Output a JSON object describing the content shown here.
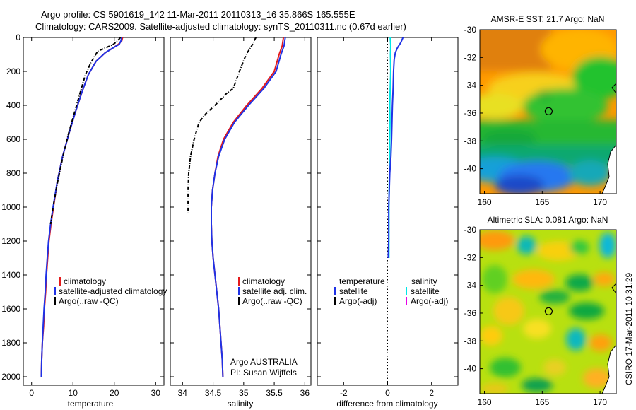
{
  "header": {
    "line1": "Argo profile: CS 5901619_142 11-Mar-2011 20110313_16 35.866S 165.555E",
    "line2": "Climatology: CARS2009. Satellite-adjusted climatology: synTS_20110311.nc (0.67d earlier)"
  },
  "credit": "CSIRO 17-Mar-2011 10:31:29",
  "colors": {
    "climatology": "#e41a1c",
    "satellite": "#1f32e6",
    "argo": "#000000",
    "sal_satellite": "#00e6e6",
    "sal_argo": "#e600e6",
    "marker": "#000000"
  },
  "chart_data": [
    {
      "id": "temperature",
      "type": "line",
      "xlabel": "temperature",
      "ylabel": "",
      "xlim": [
        -2,
        32
      ],
      "ylim": [
        2050,
        0
      ],
      "xticks": [
        "0",
        "10",
        "20",
        "30"
      ],
      "xtick_values": [
        0,
        10,
        20,
        30
      ],
      "yticks": [
        "0",
        "200",
        "400",
        "600",
        "800",
        "1000",
        "1200",
        "1400",
        "1600",
        "1800",
        "2000"
      ],
      "ytick_values": [
        0,
        200,
        400,
        600,
        800,
        1000,
        1200,
        1400,
        1600,
        1800,
        2000
      ],
      "legend": [
        "climatology",
        "satellite-adjusted climatology",
        "Argo(..raw -QC)"
      ],
      "series": [
        {
          "name": "climatology",
          "color_key": "climatology",
          "x": [
            22.0,
            21.8,
            21.0,
            19.8,
            17.8,
            15.6,
            13.7,
            12.2,
            10.6,
            9.1,
            7.5,
            6.2,
            5.3,
            4.7,
            4.2,
            3.9,
            3.6,
            3.4,
            3.1,
            2.9,
            2.6,
            2.45,
            2.35
          ],
          "y": [
            0,
            20,
            40,
            60,
            90,
            140,
            220,
            320,
            440,
            560,
            700,
            850,
            1000,
            1100,
            1200,
            1300,
            1400,
            1500,
            1600,
            1700,
            1800,
            1900,
            2000
          ]
        },
        {
          "name": "satellite-adjusted climatology",
          "color_key": "satellite",
          "x": [
            21.8,
            21.6,
            21.2,
            19.8,
            17.8,
            15.6,
            13.7,
            12.2,
            10.6,
            9.1,
            7.5,
            6.2,
            5.2,
            4.6,
            4.1,
            3.8,
            3.5,
            3.3,
            3.0,
            2.8,
            2.6,
            2.45,
            2.35
          ],
          "y": [
            0,
            20,
            40,
            60,
            90,
            140,
            220,
            320,
            440,
            560,
            700,
            850,
            1000,
            1100,
            1200,
            1300,
            1400,
            1500,
            1600,
            1700,
            1800,
            1900,
            2000
          ]
        },
        {
          "name": "Argo(..raw -QC)",
          "color_key": "argo",
          "x": [
            21.5,
            20.8,
            19.8,
            18.0,
            16.0,
            14.3,
            13.0,
            11.8,
            10.4,
            9.0,
            7.6,
            6.3,
            5.2,
            4.6
          ],
          "y": [
            0,
            20,
            40,
            60,
            80,
            150,
            220,
            320,
            440,
            560,
            700,
            850,
            1000,
            1100
          ]
        }
      ]
    },
    {
      "id": "salinity",
      "type": "line",
      "xlabel": "salinity",
      "ylabel": "",
      "xlim": [
        33.8,
        36.1
      ],
      "ylim": [
        2050,
        0
      ],
      "xticks": [
        "34",
        "34.5",
        "35",
        "35.5",
        "36"
      ],
      "xtick_values": [
        34,
        34.5,
        35,
        35.5,
        36
      ],
      "yticks": [],
      "legend": [
        "climatology",
        "satellite adj. clim.",
        "Argo(..raw -QC)"
      ],
      "annotation": [
        "Argo AUSTRALIA",
        "PI: Susan Wijffels"
      ],
      "series": [
        {
          "name": "climatology",
          "color_key": "climatology",
          "x": [
            35.65,
            35.63,
            35.58,
            35.5,
            35.3,
            35.05,
            34.83,
            34.67,
            34.58,
            34.53,
            34.49,
            34.47,
            34.47,
            34.48,
            34.5,
            34.53,
            34.56,
            34.59,
            34.61,
            34.63,
            34.65,
            34.66
          ],
          "y": [
            0,
            50,
            100,
            200,
            300,
            400,
            500,
            600,
            700,
            800,
            900,
            1000,
            1100,
            1200,
            1300,
            1400,
            1500,
            1600,
            1700,
            1800,
            1900,
            2000
          ]
        },
        {
          "name": "satellite adj. clim.",
          "color_key": "satellite",
          "x": [
            35.68,
            35.66,
            35.61,
            35.53,
            35.33,
            35.08,
            34.85,
            34.69,
            34.59,
            34.53,
            34.49,
            34.47,
            34.47,
            34.48,
            34.5,
            34.53,
            34.56,
            34.59,
            34.61,
            34.63,
            34.65,
            34.66
          ],
          "y": [
            0,
            50,
            100,
            200,
            300,
            400,
            500,
            600,
            700,
            800,
            900,
            1000,
            1100,
            1200,
            1300,
            1400,
            1500,
            1600,
            1700,
            1800,
            1900,
            2000
          ]
        },
        {
          "name": "Argo(..raw -QC)",
          "color_key": "argo",
          "x": [
            35.2,
            35.13,
            35.04,
            34.93,
            34.83,
            34.72,
            34.53,
            34.38,
            34.27,
            34.19,
            34.13,
            34.1,
            34.09,
            34.09
          ],
          "y": [
            0,
            50,
            100,
            200,
            300,
            330,
            400,
            450,
            500,
            600,
            700,
            800,
            900,
            1040
          ]
        }
      ]
    },
    {
      "id": "difference",
      "type": "line",
      "xlabel": "difference from climatology",
      "ylabel": "",
      "xlim": [
        -3.2,
        3.2
      ],
      "ylim": [
        2050,
        0
      ],
      "xticks": [
        "-2",
        "0",
        "2"
      ],
      "xtick_values": [
        -2,
        0,
        2
      ],
      "yticks": [],
      "legend_headers": [
        "temperature",
        "salinity"
      ],
      "legend": [
        "satellite",
        "Argo(-adj)",
        "satellite",
        "Argo(-adj)"
      ],
      "series": [
        {
          "name": "satellite",
          "color_key": "sal_satellite",
          "x": [
            0.12,
            0.14,
            0.13,
            0.14,
            0.12,
            0.1,
            0.11,
            0.1,
            0.09,
            0.08,
            0.07,
            0.06,
            0.06
          ],
          "y": [
            0,
            50,
            100,
            200,
            300,
            400,
            500,
            600,
            700,
            800,
            900,
            1000,
            1300
          ]
        },
        {
          "name": "satellite",
          "color_key": "satellite",
          "x": [
            0.7,
            0.6,
            0.45,
            0.35,
            0.3,
            0.27,
            0.25,
            0.22,
            0.2,
            0.18,
            0.15,
            0.1,
            0.05,
            0.05,
            0.03
          ],
          "y": [
            0,
            30,
            60,
            90,
            130,
            200,
            300,
            400,
            500,
            600,
            700,
            800,
            1000,
            1200,
            1300
          ]
        }
      ]
    },
    {
      "id": "sst-map",
      "type": "heatmap",
      "title": "AMSR-E SST: 21.7 Argo: NaN",
      "xlim": [
        159.6,
        171.4
      ],
      "ylim": [
        -41.8,
        -30
      ],
      "xticks": [
        "160",
        "165",
        "170"
      ],
      "xtick_values": [
        160,
        165,
        170
      ],
      "yticks": [
        "-30",
        "-32",
        "-34",
        "-36",
        "-38",
        "-40"
      ],
      "ytick_values": [
        -30,
        -32,
        -34,
        -36,
        -38,
        -40
      ],
      "marker": {
        "lon": 165.555,
        "lat": -35.866
      }
    },
    {
      "id": "sla-map",
      "type": "heatmap",
      "title": "Altimetric SLA: 0.081 Argo: NaN",
      "xlim": [
        159.6,
        171.4
      ],
      "ylim": [
        -41.8,
        -30
      ],
      "xticks": [
        "160",
        "165",
        "170"
      ],
      "xtick_values": [
        160,
        165,
        170
      ],
      "yticks": [
        "-30",
        "-32",
        "-34",
        "-36",
        "-38",
        "-40"
      ],
      "ytick_values": [
        -30,
        -32,
        -34,
        -36,
        -38,
        -40
      ],
      "marker": {
        "lon": 165.555,
        "lat": -35.866
      }
    }
  ]
}
